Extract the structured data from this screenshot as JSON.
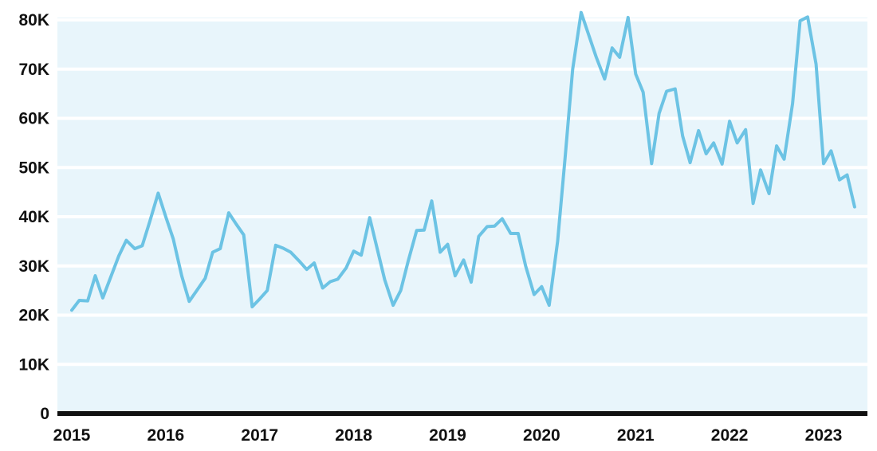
{
  "chart_data": {
    "type": "line",
    "title": "",
    "xlabel": "",
    "ylabel": "",
    "xlim": [
      2015,
      2023.5
    ],
    "ylim": [
      0,
      80000
    ],
    "y_ticks": [
      {
        "value": 0,
        "label": "0"
      },
      {
        "value": 10000,
        "label": "10K"
      },
      {
        "value": 20000,
        "label": "20K"
      },
      {
        "value": 30000,
        "label": "30K"
      },
      {
        "value": 40000,
        "label": "40K"
      },
      {
        "value": 50000,
        "label": "50K"
      },
      {
        "value": 60000,
        "label": "60K"
      },
      {
        "value": 70000,
        "label": "70K"
      },
      {
        "value": 80000,
        "label": "80K"
      }
    ],
    "x_ticks": [
      {
        "value": 2015,
        "label": "2015"
      },
      {
        "value": 2016,
        "label": "2016"
      },
      {
        "value": 2017,
        "label": "2017"
      },
      {
        "value": 2018,
        "label": "2018"
      },
      {
        "value": 2019,
        "label": "2019"
      },
      {
        "value": 2020,
        "label": "2020"
      },
      {
        "value": 2021,
        "label": "2021"
      },
      {
        "value": 2022,
        "label": "2022"
      },
      {
        "value": 2023,
        "label": "2023"
      }
    ],
    "grid": "horizontal",
    "legend": "none",
    "colors": {
      "plot_background": "#e8f5fb",
      "grid": "#ffffff",
      "line": "#6cc3e4",
      "axis": "#111111"
    },
    "series": [
      {
        "x": [
          2015.0,
          2015.08,
          2015.17,
          2015.25,
          2015.33,
          2015.42,
          2015.5,
          2015.58,
          2015.67,
          2015.75,
          2015.83,
          2015.92,
          2016.0,
          2016.08,
          2016.17,
          2016.25,
          2016.33,
          2016.42,
          2016.5,
          2016.58,
          2016.67,
          2016.75,
          2016.83,
          2016.92,
          2017.0,
          2017.08,
          2017.17,
          2017.25,
          2017.33,
          2017.42,
          2017.5,
          2017.58,
          2017.67,
          2017.75,
          2017.83,
          2017.92,
          2018.0,
          2018.08,
          2018.17,
          2018.25,
          2018.33,
          2018.42,
          2018.5,
          2018.58,
          2018.67,
          2018.75,
          2018.83,
          2018.92,
          2019.0,
          2019.08,
          2019.17,
          2019.25,
          2019.33,
          2019.42,
          2019.5,
          2019.58,
          2019.67,
          2019.75,
          2019.83,
          2019.92,
          2020.0,
          2020.08,
          2020.17,
          2020.25,
          2020.33,
          2020.42,
          2020.5,
          2020.58,
          2020.67,
          2020.75,
          2020.83,
          2020.92,
          2021.0,
          2021.08,
          2021.17,
          2021.25,
          2021.33,
          2021.42,
          2021.5,
          2021.58,
          2021.67,
          2021.75,
          2021.83,
          2021.92,
          2022.0,
          2022.08,
          2022.17,
          2022.25,
          2022.33,
          2022.42,
          2022.5,
          2022.58,
          2022.67,
          2022.75,
          2022.83,
          2022.92,
          2023.0,
          2023.08,
          2023.17,
          2023.25,
          2023.33
        ],
        "values": [
          21000,
          23000,
          22900,
          28000,
          23500,
          28000,
          32000,
          35200,
          33500,
          34100,
          39000,
          44800,
          40000,
          35500,
          28000,
          22800,
          25000,
          27500,
          32800,
          33500,
          40800,
          38500,
          36300,
          21700,
          23300,
          25000,
          34200,
          33600,
          32800,
          31000,
          29300,
          30600,
          25500,
          26800,
          27300,
          29600,
          33000,
          32200,
          39800,
          33500,
          27200,
          22000,
          25000,
          31000,
          37200,
          37300,
          43200,
          32800,
          34400,
          28000,
          31200,
          26700,
          36000,
          38000,
          38100,
          39600,
          36600,
          36600,
          30000,
          24200,
          25800,
          22000,
          35000,
          52000,
          70000,
          81500,
          77000,
          72500,
          68000,
          74300,
          72400,
          80500,
          69000,
          65300,
          50800,
          61000,
          65500,
          66000,
          56400,
          51000,
          57500,
          52800,
          55000,
          50700,
          59400,
          55000,
          57700,
          42700,
          49500,
          44700,
          54400,
          51700,
          63000,
          79800,
          80600,
          71000,
          50800,
          53400,
          47500,
          48500,
          42000
        ]
      }
    ]
  }
}
